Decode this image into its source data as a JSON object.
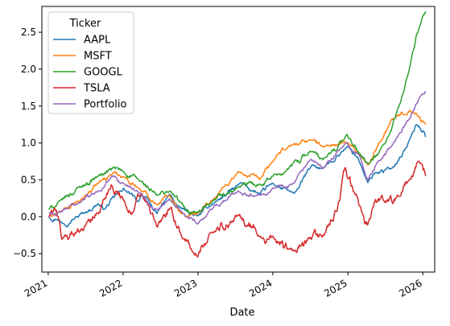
{
  "chart_data": {
    "type": "line",
    "xlabel": "Date",
    "ylabel": "",
    "title": "",
    "x_ticks": [
      "2021",
      "2022",
      "2023",
      "2024",
      "2025",
      "2026"
    ],
    "y_ticks": [
      "−0.5",
      "0.0",
      "0.5",
      "1.0",
      "1.5",
      "2.0",
      "2.5"
    ],
    "xlim": [
      "2020-12-01",
      "2026-02-28"
    ],
    "ylim": [
      -0.75,
      2.85
    ],
    "grid": false,
    "legend": {
      "title": "Ticker",
      "placement": "top-left"
    },
    "series": [
      {
        "name": "AAPL",
        "color": "#1f77b4",
        "points": [
          [
            "2021-01-04",
            0.0
          ],
          [
            "2021-02-15",
            -0.02
          ],
          [
            "2021-03-10",
            -0.08
          ],
          [
            "2021-05-01",
            -0.03
          ],
          [
            "2021-07-01",
            0.06
          ],
          [
            "2021-09-01",
            0.18
          ],
          [
            "2021-10-01",
            0.1
          ],
          [
            "2021-12-20",
            0.35
          ],
          [
            "2022-01-03",
            0.38
          ],
          [
            "2022-03-15",
            0.2
          ],
          [
            "2022-04-01",
            0.32
          ],
          [
            "2022-06-15",
            0.04
          ],
          [
            "2022-08-15",
            0.3
          ],
          [
            "2022-10-01",
            0.12
          ],
          [
            "2022-12-30",
            0.0
          ],
          [
            "2023-03-01",
            0.15
          ],
          [
            "2023-07-31",
            0.45
          ],
          [
            "2023-10-31",
            0.3
          ],
          [
            "2023-12-30",
            0.45
          ],
          [
            "2024-04-15",
            0.3
          ],
          [
            "2024-07-10",
            0.7
          ],
          [
            "2024-09-01",
            0.65
          ],
          [
            "2024-12-27",
            0.95
          ],
          [
            "2025-02-20",
            0.8
          ],
          [
            "2025-04-08",
            0.45
          ],
          [
            "2025-05-15",
            0.6
          ],
          [
            "2025-08-01",
            0.65
          ],
          [
            "2025-10-15",
            0.95
          ],
          [
            "2025-12-01",
            1.25
          ],
          [
            "2026-01-10",
            1.15
          ],
          [
            "2026-01-15",
            1.08
          ]
        ]
      },
      {
        "name": "MSFT",
        "color": "#ff7f0e",
        "points": [
          [
            "2021-01-04",
            0.0
          ],
          [
            "2021-03-01",
            0.06
          ],
          [
            "2021-06-01",
            0.2
          ],
          [
            "2021-09-01",
            0.45
          ],
          [
            "2021-11-15",
            0.6
          ],
          [
            "2022-01-03",
            0.55
          ],
          [
            "2022-03-15",
            0.4
          ],
          [
            "2022-06-15",
            0.18
          ],
          [
            "2022-08-15",
            0.3
          ],
          [
            "2022-11-01",
            0.0
          ],
          [
            "2022-12-30",
            0.05
          ],
          [
            "2023-03-01",
            0.2
          ],
          [
            "2023-07-15",
            0.6
          ],
          [
            "2023-10-31",
            0.5
          ],
          [
            "2023-12-30",
            0.75
          ],
          [
            "2024-03-15",
            0.95
          ],
          [
            "2024-07-01",
            1.05
          ],
          [
            "2024-09-01",
            0.95
          ],
          [
            "2024-12-27",
            1.0
          ],
          [
            "2025-03-01",
            0.85
          ],
          [
            "2025-04-08",
            0.7
          ],
          [
            "2025-06-01",
            1.0
          ],
          [
            "2025-07-31",
            1.3
          ],
          [
            "2025-10-31",
            1.45
          ],
          [
            "2025-12-01",
            1.4
          ],
          [
            "2026-01-15",
            1.25
          ]
        ]
      },
      {
        "name": "GOOGL",
        "color": "#2ca02c",
        "points": [
          [
            "2021-01-04",
            0.1
          ],
          [
            "2021-03-01",
            0.2
          ],
          [
            "2021-06-01",
            0.4
          ],
          [
            "2021-09-01",
            0.55
          ],
          [
            "2021-11-15",
            0.65
          ],
          [
            "2022-01-03",
            0.6
          ],
          [
            "2022-03-15",
            0.5
          ],
          [
            "2022-06-15",
            0.28
          ],
          [
            "2022-08-15",
            0.35
          ],
          [
            "2022-11-01",
            0.1
          ],
          [
            "2022-12-30",
            0.05
          ],
          [
            "2023-03-01",
            0.15
          ],
          [
            "2023-07-15",
            0.4
          ],
          [
            "2023-10-31",
            0.45
          ],
          [
            "2023-12-30",
            0.55
          ],
          [
            "2024-03-15",
            0.65
          ],
          [
            "2024-07-01",
            0.9
          ],
          [
            "2024-09-01",
            0.75
          ],
          [
            "2024-12-27",
            1.1
          ],
          [
            "2025-03-01",
            0.85
          ],
          [
            "2025-04-08",
            0.7
          ],
          [
            "2025-06-01",
            0.85
          ],
          [
            "2025-07-31",
            1.15
          ],
          [
            "2025-09-15",
            1.55
          ],
          [
            "2025-10-31",
            2.05
          ],
          [
            "2025-12-01",
            2.45
          ],
          [
            "2026-01-15",
            2.78
          ]
        ]
      },
      {
        "name": "TSLA",
        "color": "#d62728",
        "points": [
          [
            "2021-01-04",
            0.0
          ],
          [
            "2021-02-10",
            0.1
          ],
          [
            "2021-03-08",
            -0.3
          ],
          [
            "2021-05-15",
            -0.2
          ],
          [
            "2021-07-01",
            -0.1
          ],
          [
            "2021-09-01",
            0.05
          ],
          [
            "2021-11-04",
            0.45
          ],
          [
            "2022-01-03",
            0.25
          ],
          [
            "2022-02-15",
            0.05
          ],
          [
            "2022-04-01",
            0.3
          ],
          [
            "2022-06-15",
            -0.15
          ],
          [
            "2022-08-15",
            0.1
          ],
          [
            "2022-10-15",
            -0.25
          ],
          [
            "2022-12-30",
            -0.55
          ],
          [
            "2023-03-01",
            -0.2
          ],
          [
            "2023-07-15",
            0.0
          ],
          [
            "2023-10-31",
            -0.25
          ],
          [
            "2023-12-30",
            -0.3
          ],
          [
            "2024-04-15",
            -0.5
          ],
          [
            "2024-07-01",
            -0.3
          ],
          [
            "2024-09-01",
            -0.25
          ],
          [
            "2024-11-11",
            0.1
          ],
          [
            "2024-12-17",
            0.65
          ],
          [
            "2025-02-01",
            0.3
          ],
          [
            "2025-03-10",
            0.05
          ],
          [
            "2025-04-08",
            -0.1
          ],
          [
            "2025-05-15",
            0.25
          ],
          [
            "2025-07-01",
            0.2
          ],
          [
            "2025-09-01",
            0.3
          ],
          [
            "2025-11-01",
            0.5
          ],
          [
            "2025-12-15",
            0.7
          ],
          [
            "2026-01-15",
            0.55
          ]
        ]
      },
      {
        "name": "Portfolio",
        "color": "#9467bd",
        "points": [
          [
            "2021-01-04",
            0.05
          ],
          [
            "2021-03-01",
            0.05
          ],
          [
            "2021-06-01",
            0.2
          ],
          [
            "2021-09-01",
            0.35
          ],
          [
            "2021-11-15",
            0.55
          ],
          [
            "2022-01-03",
            0.45
          ],
          [
            "2022-03-15",
            0.35
          ],
          [
            "2022-06-15",
            0.1
          ],
          [
            "2022-08-15",
            0.25
          ],
          [
            "2022-11-01",
            0.0
          ],
          [
            "2022-12-30",
            -0.1
          ],
          [
            "2023-03-01",
            0.1
          ],
          [
            "2023-07-15",
            0.35
          ],
          [
            "2023-10-31",
            0.3
          ],
          [
            "2023-12-30",
            0.4
          ],
          [
            "2024-04-15",
            0.45
          ],
          [
            "2024-07-01",
            0.75
          ],
          [
            "2024-09-01",
            0.65
          ],
          [
            "2024-12-27",
            1.0
          ],
          [
            "2025-03-01",
            0.8
          ],
          [
            "2025-04-08",
            0.5
          ],
          [
            "2025-06-01",
            0.75
          ],
          [
            "2025-08-01",
            0.95
          ],
          [
            "2025-10-31",
            1.35
          ],
          [
            "2025-12-15",
            1.6
          ],
          [
            "2026-01-15",
            1.7
          ]
        ]
      }
    ]
  }
}
